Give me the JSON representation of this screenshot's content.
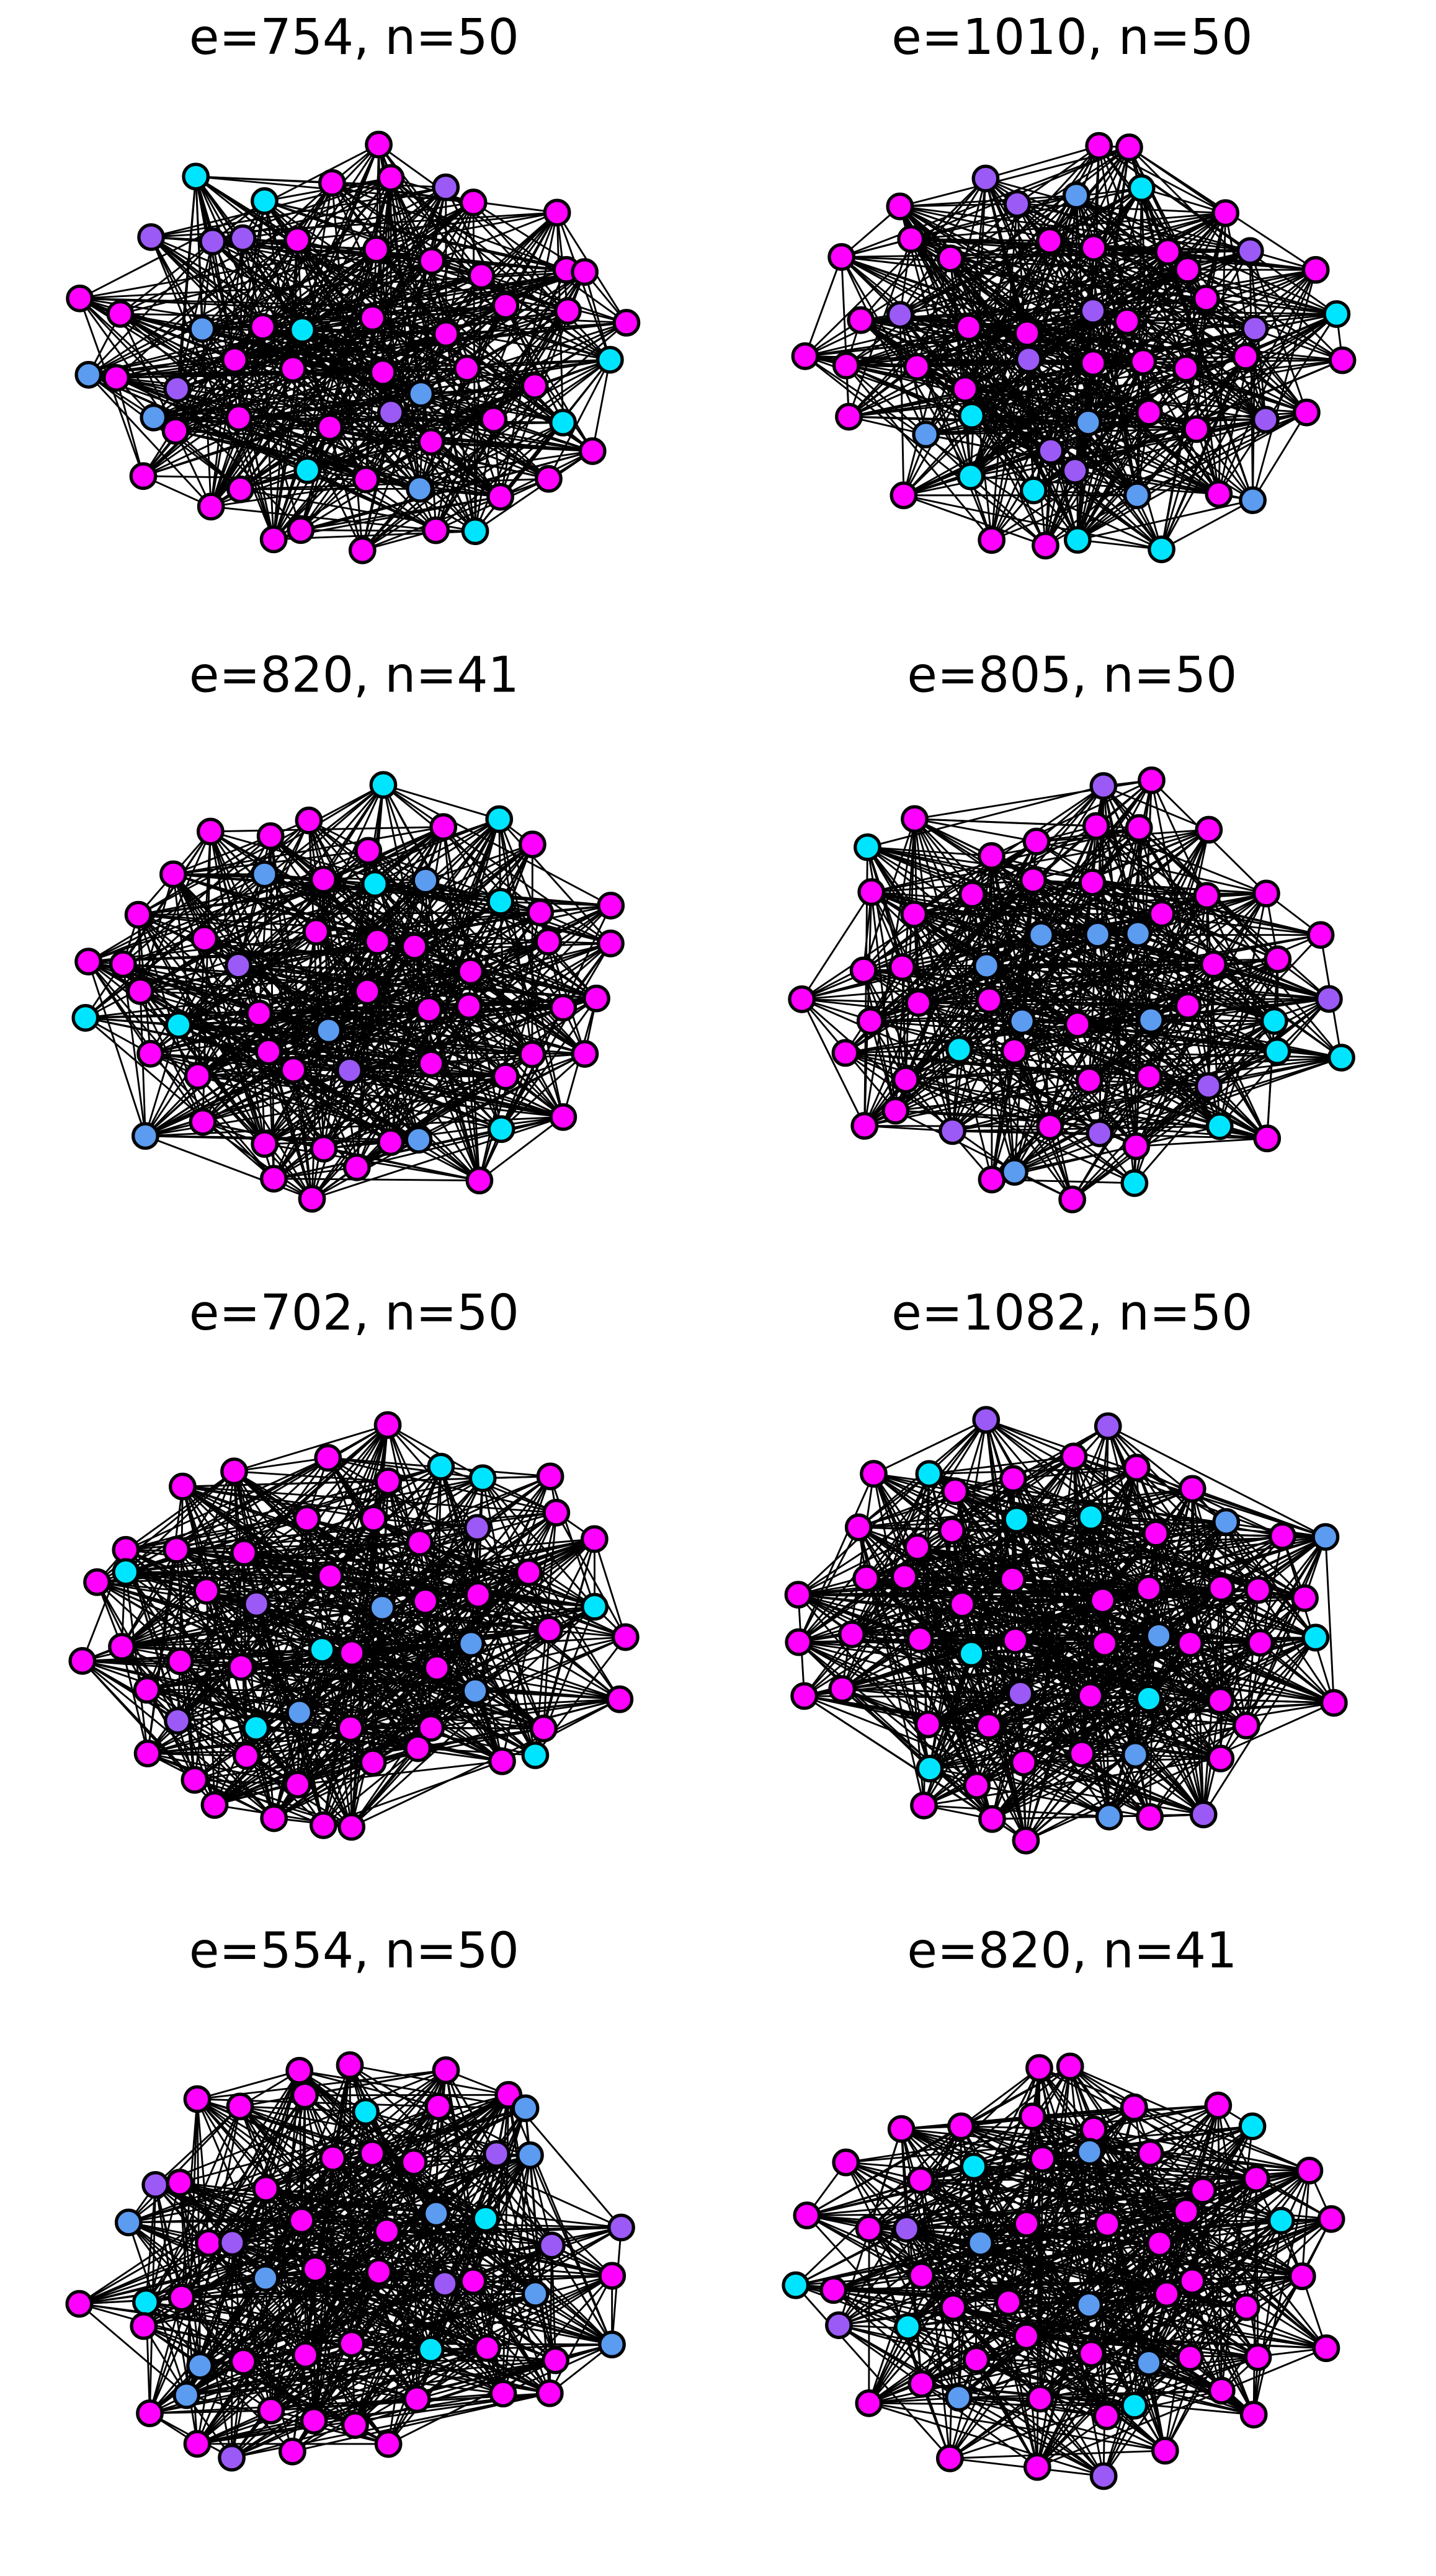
{
  "panels": [
    {
      "title": "e=754, n=50"
    },
    {
      "title": "e=1010, n=50"
    },
    {
      "title": "e=820, n=41"
    },
    {
      "title": "e=805, n=50"
    },
    {
      "title": "e=702, n=50"
    },
    {
      "title": "e=1082, n=50"
    },
    {
      "title": "e=554, n=50"
    },
    {
      "title": "e=820, n=41"
    }
  ]
}
